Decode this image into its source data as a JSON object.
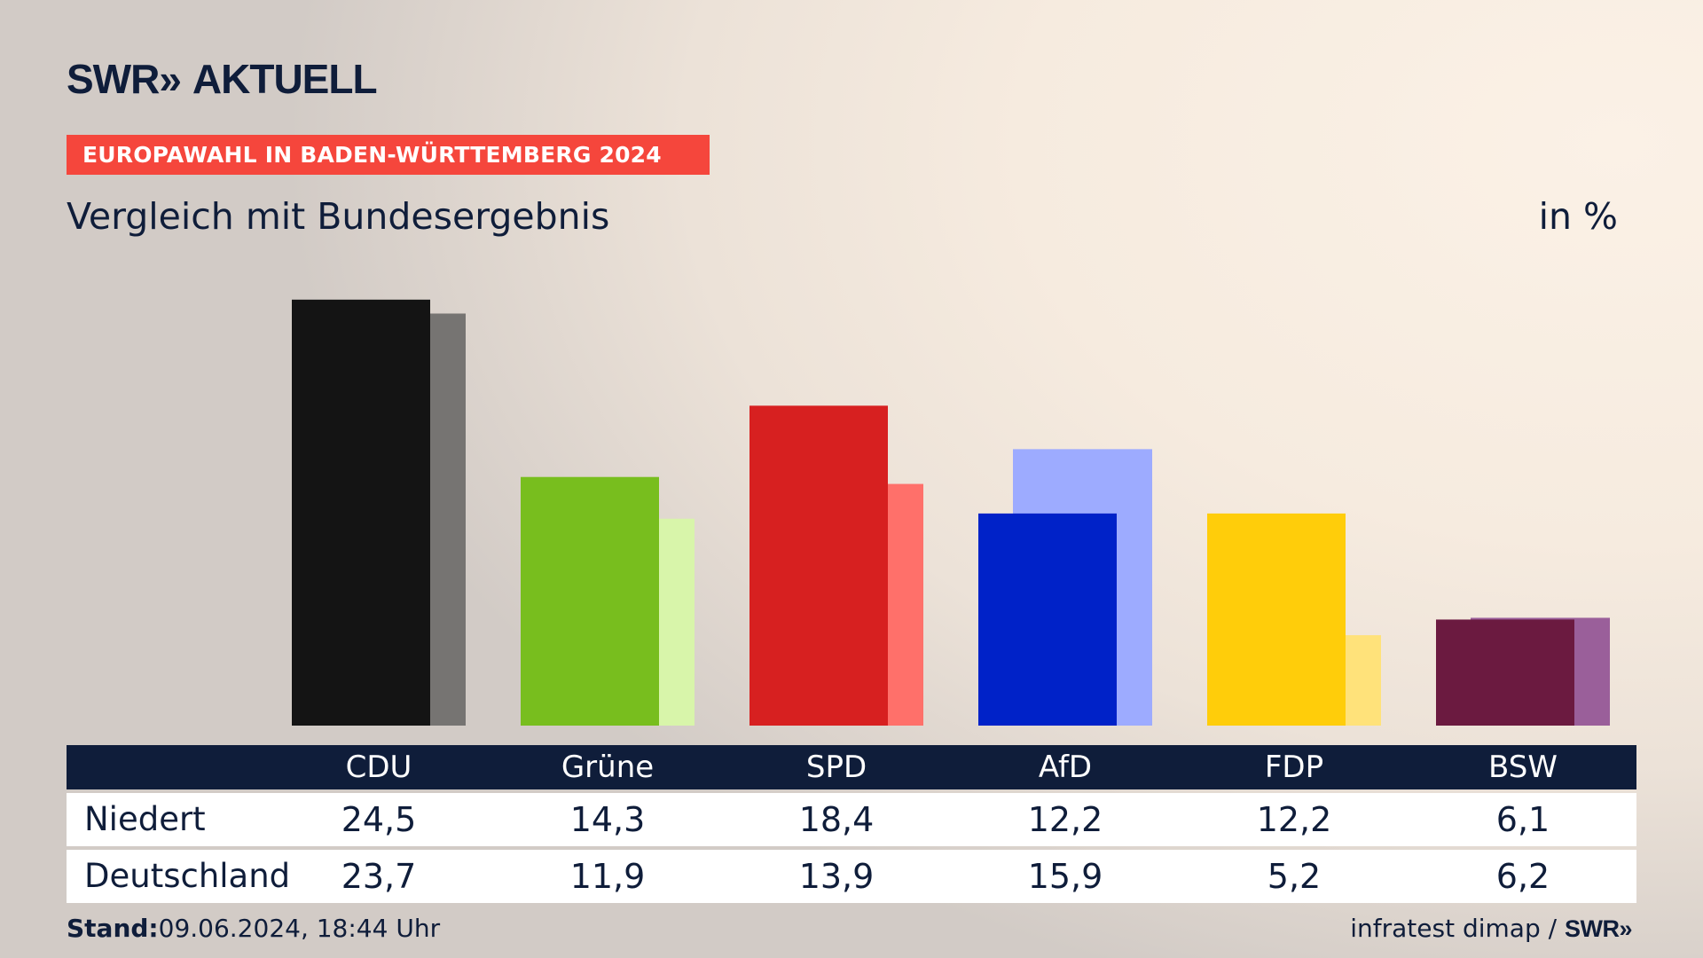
{
  "logo": {
    "brand": "SWR",
    "arrows": "»",
    "name": "AKTUELL"
  },
  "banner": "EUROPAWAHL IN BADEN-WÜRTTEMBERG 2024",
  "subtitle": "Vergleich mit Bundesergebnis",
  "unit": "in %",
  "colors": {
    "navy": "#0f1d3a",
    "banner": "#f5463c"
  },
  "chart_data": {
    "type": "bar",
    "title": "Vergleich mit Bundesergebnis",
    "ylabel": "in %",
    "ylim": [
      0,
      25
    ],
    "categories": [
      "CDU",
      "Grüne",
      "SPD",
      "AfD",
      "FDP",
      "BSW"
    ],
    "series": [
      {
        "name": "Niedert",
        "values": [
          24.5,
          14.3,
          18.4,
          12.2,
          12.2,
          6.1
        ],
        "colors": [
          "#141414",
          "#78be1e",
          "#d72020",
          "#0022c8",
          "#ffcd0a",
          "#6b1a40"
        ]
      },
      {
        "name": "Deutschland",
        "values": [
          23.7,
          11.9,
          13.9,
          15.9,
          5.2,
          6.2
        ],
        "colors": [
          "#767472",
          "#d8f5aa",
          "#ff706a",
          "#9dabff",
          "#ffe27a",
          "#9a5f9a"
        ]
      }
    ],
    "value_labels": {
      "Niedert": [
        "24,5",
        "14,3",
        "18,4",
        "12,2",
        "12,2",
        "6,1"
      ],
      "Deutschland": [
        "23,7",
        "11,9",
        "13,9",
        "15,9",
        "5,2",
        "6,2"
      ]
    },
    "grid": false,
    "legend": "none"
  },
  "footer": {
    "stand_label": "Stand:",
    "stand_value": "09.06.2024, 18:44 Uhr",
    "source": "infratest dimap /",
    "source_brand": "SWR",
    "source_arrows": "»"
  }
}
